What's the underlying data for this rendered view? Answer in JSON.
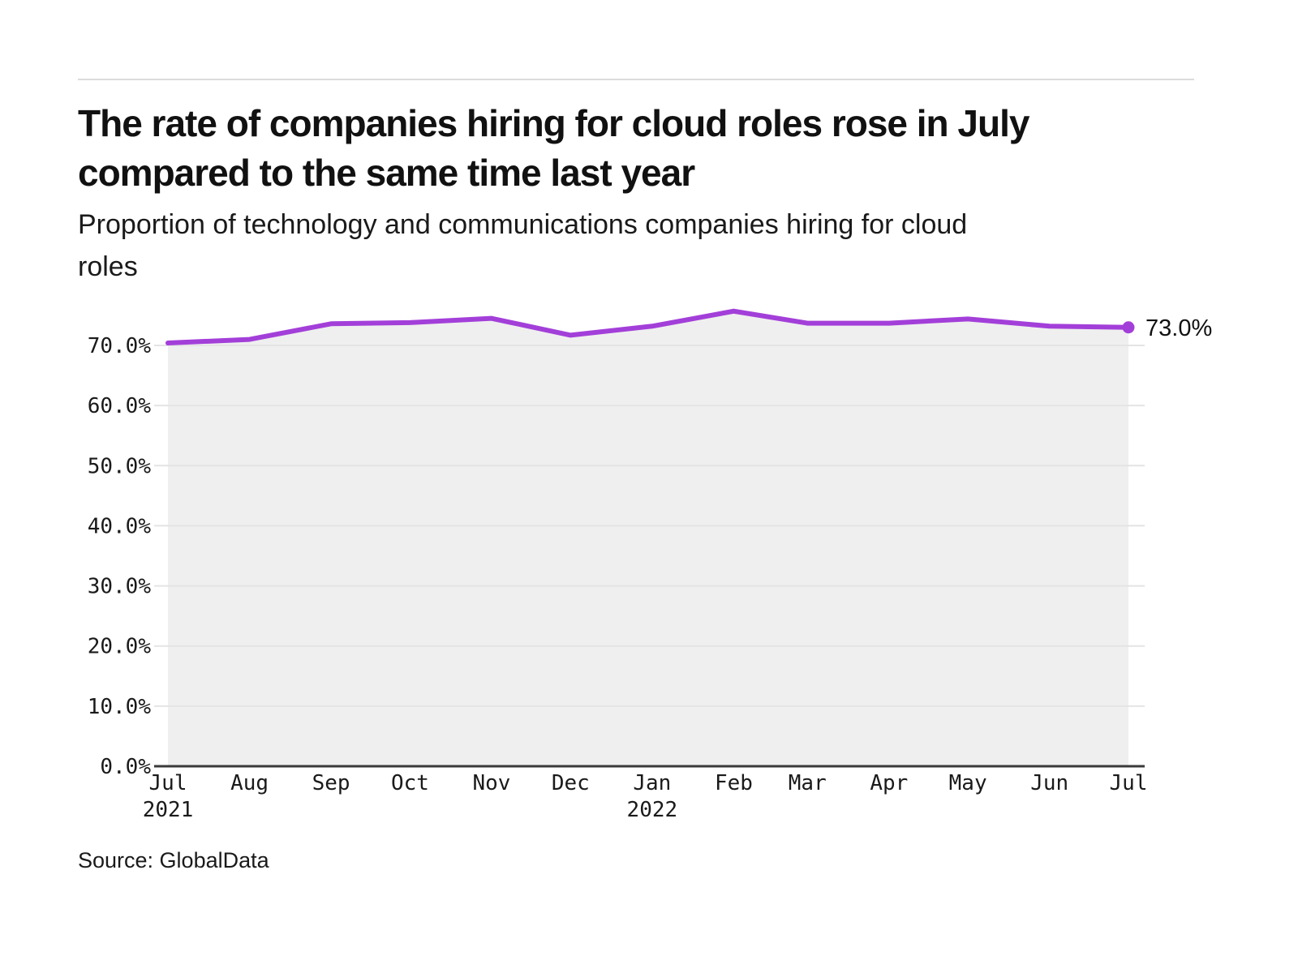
{
  "page": {
    "title": "The rate of companies hiring for cloud roles rose in July compared to the same time last year",
    "title_lines": [
      "The rate of companies hiring for cloud roles rose in July",
      "compared to the same time last year"
    ],
    "subtitle": "Proportion of technology and communications companies hiring for cloud roles",
    "subtitle_lines": [
      "Proportion of technology and communications companies hiring for cloud",
      "roles"
    ],
    "source": "Source: GlobalData"
  },
  "chart_data": {
    "type": "line",
    "title": "The rate of companies hiring for cloud roles rose in July compared to the same time last year",
    "subtitle": "Proportion of technology and communications companies hiring for cloud roles",
    "categories": [
      "Jul 2021",
      "Aug 2021",
      "Sep 2021",
      "Oct 2021",
      "Nov 2021",
      "Dec 2021",
      "Jan 2022",
      "Feb 2022",
      "Mar 2022",
      "Apr 2022",
      "May 2022",
      "Jun 2022",
      "Jul 2022"
    ],
    "values": [
      70.4,
      71.0,
      73.6,
      73.8,
      74.5,
      71.7,
      73.2,
      75.7,
      73.7,
      73.7,
      74.4,
      73.2,
      73.0
    ],
    "unit": "%",
    "xlabel": "",
    "ylabel": "",
    "ylim": [
      0,
      78
    ],
    "yticks": [
      70,
      60,
      50,
      40,
      30,
      20,
      10,
      0
    ],
    "ytick_labels": [
      "70.0%",
      "60.0%",
      "50.0%",
      "40.0%",
      "30.0%",
      "20.0%",
      "10.0%",
      "0.0%"
    ],
    "grid": true,
    "legend": false,
    "end_label": "73.0%",
    "colors": {
      "line": "#A33FD9",
      "area": "#EFEFEF",
      "gridline": "#E4E4E4",
      "baseline": "#3A3A3A",
      "text": "#1A1A1A"
    }
  },
  "x_axis": {
    "ticks": [
      {
        "month": "Jul",
        "year": "2021"
      },
      {
        "month": "Aug"
      },
      {
        "month": "Sep"
      },
      {
        "month": "Oct"
      },
      {
        "month": "Nov"
      },
      {
        "month": "Dec"
      },
      {
        "month": "Jan",
        "year": "2022"
      },
      {
        "month": "Feb"
      },
      {
        "month": "Mar"
      },
      {
        "month": "Apr"
      },
      {
        "month": "May"
      },
      {
        "month": "Jun"
      },
      {
        "month": "Jul"
      }
    ]
  }
}
